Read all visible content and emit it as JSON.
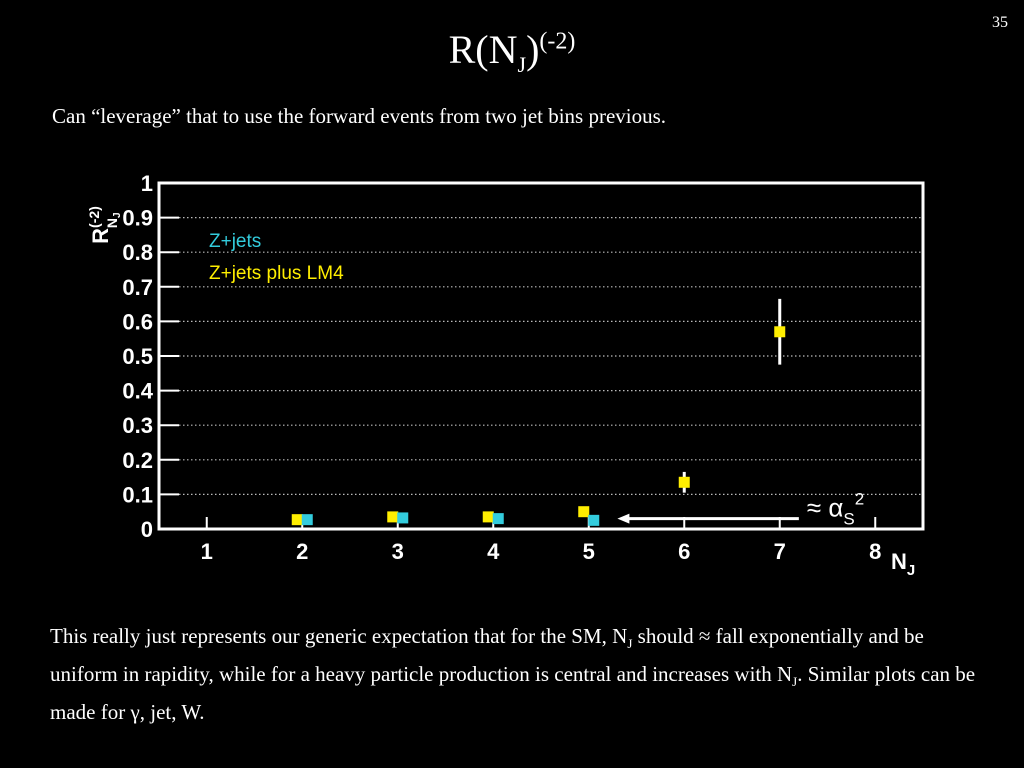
{
  "slide": {
    "number": "35",
    "title": {
      "main": "R(N",
      "sub": "J",
      "close": ")",
      "sup": "(-2)"
    },
    "subtitle": "Can “leverage” that to use the forward events  from two jet bins previous.",
    "bottom_text": {
      "part1": "This really just represents our generic expectation that for the SM, N",
      "sub1": "J",
      "part2": " should ≈ fall exponentially and be uniform in rapidity, while for a heavy particle production is central and increases with N",
      "sub2": "J",
      "part3": ".  Similar plots can be made for γ, jet, W."
    }
  },
  "chart_data": {
    "type": "scatter",
    "ylabel": {
      "main": "R",
      "sup": "(-2)",
      "sub": "N",
      "subsub": "J"
    },
    "xlabel": {
      "main": "N",
      "sub": "J"
    },
    "xlim": [
      0.5,
      8.5
    ],
    "ylim": [
      0,
      1.0
    ],
    "x_ticks": [
      1,
      2,
      3,
      4,
      5,
      6,
      7,
      8
    ],
    "y_ticks": [
      0,
      0.1,
      0.2,
      0.3,
      0.4,
      0.5,
      0.6,
      0.7,
      0.8,
      0.9,
      1
    ],
    "y_tick_labels": [
      "0",
      "0.1",
      "0.2",
      "0.3",
      "0.4",
      "0.5",
      "0.6",
      "0.7",
      "0.8",
      "0.9",
      "1"
    ],
    "grid": "horizontal dotted",
    "background": "#000000",
    "series": [
      {
        "name": "Z+jets",
        "color": "#33ccdd",
        "points": [
          {
            "x": 2,
            "y": 0.027
          },
          {
            "x": 3,
            "y": 0.032
          },
          {
            "x": 4,
            "y": 0.03
          },
          {
            "x": 5,
            "y": 0.025
          }
        ]
      },
      {
        "name": "Z+jets plus LM4",
        "color": "#ffee00",
        "points": [
          {
            "x": 2,
            "y": 0.027,
            "err": 0.003
          },
          {
            "x": 3,
            "y": 0.035,
            "err": 0.003
          },
          {
            "x": 4,
            "y": 0.035,
            "err": 0.003
          },
          {
            "x": 5,
            "y": 0.05,
            "err": 0.005
          },
          {
            "x": 6,
            "y": 0.135,
            "err": 0.03
          },
          {
            "x": 7,
            "y": 0.57,
            "err": 0.095
          }
        ]
      }
    ],
    "annotation": {
      "text": "≈ α",
      "sub": "S",
      "sup": "2",
      "arrow_from": {
        "x": 7.2,
        "y": 0.03
      },
      "arrow_to": {
        "x": 5.3,
        "y": 0.03
      }
    }
  }
}
